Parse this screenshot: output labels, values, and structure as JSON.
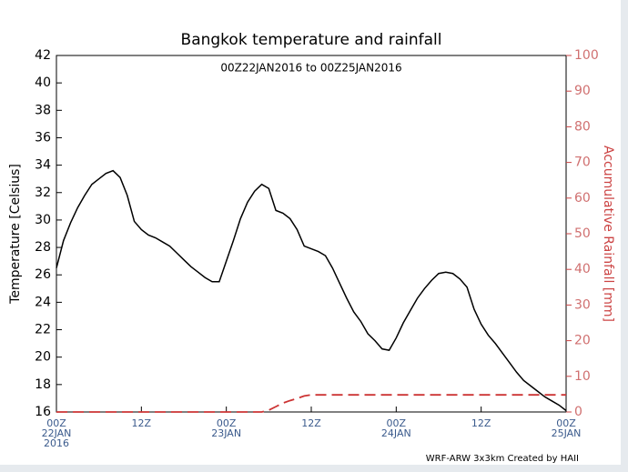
{
  "chart_data": {
    "type": "line",
    "title": "Bangkok temperature and rainfall",
    "subtitle": "00Z22JAN2016 to 00Z25JAN2016",
    "ylabel": "Temperature [Celsius]",
    "y2label": "Accumulative Rainfall [mm]",
    "footer": "WRF-ARW 3x3km Created by HAII",
    "xlim": [
      0,
      72
    ],
    "xticks": [
      {
        "value": 0,
        "label": "00Z\n22JAN\n2016"
      },
      {
        "value": 12,
        "label": "12Z"
      },
      {
        "value": 24,
        "label": "00Z\n23JAN"
      },
      {
        "value": 36,
        "label": "12Z"
      },
      {
        "value": 48,
        "label": "00Z\n24JAN"
      },
      {
        "value": 60,
        "label": "12Z"
      },
      {
        "value": 72,
        "label": "00Z\n25JAN"
      }
    ],
    "ylim": [
      16,
      42
    ],
    "yticks": [
      16,
      18,
      20,
      22,
      24,
      26,
      28,
      30,
      32,
      34,
      36,
      38,
      40,
      42
    ],
    "y2lim": [
      0,
      100
    ],
    "y2ticks": [
      0,
      10,
      20,
      30,
      40,
      50,
      60,
      70,
      80,
      90,
      100
    ],
    "series": [
      {
        "name": "Temperature",
        "color": "#000000",
        "linestyle": "solid",
        "x": [
          0,
          1,
          2,
          3,
          4,
          5,
          6,
          7,
          8,
          9,
          10,
          11,
          12,
          13,
          14,
          15,
          16,
          17,
          18,
          19,
          20,
          21,
          22,
          23,
          24,
          25,
          26,
          27,
          28,
          29,
          30,
          31,
          32,
          33,
          34,
          35,
          36,
          37,
          38,
          39,
          40,
          41,
          42,
          43,
          44,
          45,
          46,
          47,
          48,
          49,
          50,
          51,
          52,
          53,
          54,
          55,
          56,
          57,
          58,
          59,
          60,
          61,
          62,
          63,
          64,
          65,
          66,
          67,
          68,
          69,
          70,
          71,
          72
        ],
        "values": [
          26.5,
          28.5,
          29.8,
          30.9,
          31.8,
          32.6,
          33.0,
          33.4,
          33.6,
          33.1,
          31.8,
          29.9,
          29.3,
          28.9,
          28.7,
          28.4,
          28.1,
          27.6,
          27.1,
          26.6,
          26.2,
          25.8,
          25.5,
          25.5,
          27.0,
          28.5,
          30.1,
          31.3,
          32.1,
          32.6,
          32.3,
          30.7,
          30.5,
          30.1,
          29.3,
          28.1,
          27.9,
          27.7,
          27.4,
          26.5,
          25.4,
          24.3,
          23.3,
          22.6,
          21.7,
          21.2,
          20.6,
          20.5,
          21.4,
          22.5,
          23.4,
          24.3,
          25.0,
          25.6,
          26.1,
          26.2,
          26.1,
          25.7,
          25.1,
          23.5,
          22.4,
          21.6,
          21.0,
          20.3,
          19.6,
          18.9,
          18.3,
          17.9,
          17.5,
          17.1,
          16.8,
          16.5,
          16.1
        ]
      },
      {
        "name": "Accumulative Rainfall",
        "color": "#cc3333",
        "linestyle": "dashed",
        "axis": "y2",
        "x": [
          0,
          29,
          30,
          31,
          32,
          33,
          34,
          35,
          36,
          72
        ],
        "values": [
          0,
          0,
          0.5,
          1.5,
          2.5,
          3.2,
          3.8,
          4.5,
          4.8,
          4.8
        ]
      }
    ]
  }
}
